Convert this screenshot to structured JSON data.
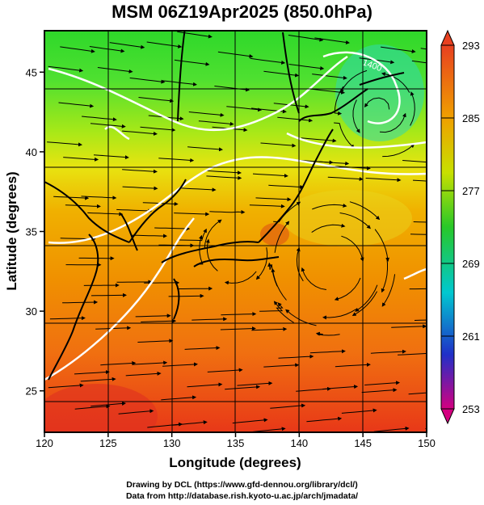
{
  "title": "MSM 06Z19Apr2025 (850.0hPa)",
  "map": {
    "x_axis": {
      "label": "Longitude (degrees)",
      "range": [
        120,
        150
      ],
      "ticks": [
        "120",
        "125",
        "130",
        "135",
        "140",
        "145",
        "150"
      ]
    },
    "y_axis": {
      "label": "Latitude  (degrees)",
      "range": [
        22.4,
        47.6
      ],
      "ticks": [
        "25",
        "30",
        "35",
        "40",
        "45"
      ]
    },
    "field": "temperature (K) with streamlines",
    "contour_label": "1400"
  },
  "colorbar": {
    "ticks": [
      "293",
      "285",
      "277",
      "269",
      "261",
      "253"
    ],
    "range": [
      253,
      293
    ],
    "colors": [
      "#d40080",
      "#2030c8",
      "#00c8d0",
      "#28c828",
      "#c8e000",
      "#f0a000",
      "#e84020"
    ]
  },
  "credits": {
    "line1": "Drawing by DCL (https://www.gfd-dennou.org/library/dcl/)",
    "line2": "Data from http://database.rish.kyoto-u.ac.jp/arch/jmadata/"
  }
}
